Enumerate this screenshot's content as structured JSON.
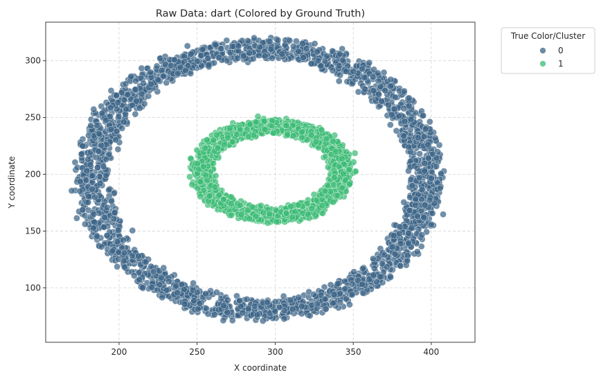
{
  "chart_data": {
    "type": "scatter",
    "title": "Raw Data: dart (Colored by Ground Truth)",
    "xlabel": "X coordinate",
    "ylabel": "Y coordinate",
    "xlim": [
      153,
      428
    ],
    "ylim": [
      52,
      334
    ],
    "x_ticks": [
      200,
      250,
      300,
      350,
      400
    ],
    "y_ticks": [
      100,
      150,
      200,
      250,
      300
    ],
    "grid": true,
    "legend": {
      "title": "True Color/Cluster",
      "placement": "outside-top-right",
      "entries": [
        "0",
        "1"
      ]
    },
    "series": [
      {
        "name": "0",
        "color": "#3b6486",
        "shape": "ring",
        "center": [
          290,
          196
        ],
        "radii": [
          107,
          115
        ],
        "thickness": [
          20,
          16
        ],
        "approx_points": 2400
      },
      {
        "name": "1",
        "color": "#3cbb75",
        "shape": "ring",
        "center": [
          298,
          203
        ],
        "radii": [
          45,
          39
        ],
        "thickness": [
          12,
          12
        ],
        "approx_points": 1600
      }
    ]
  }
}
